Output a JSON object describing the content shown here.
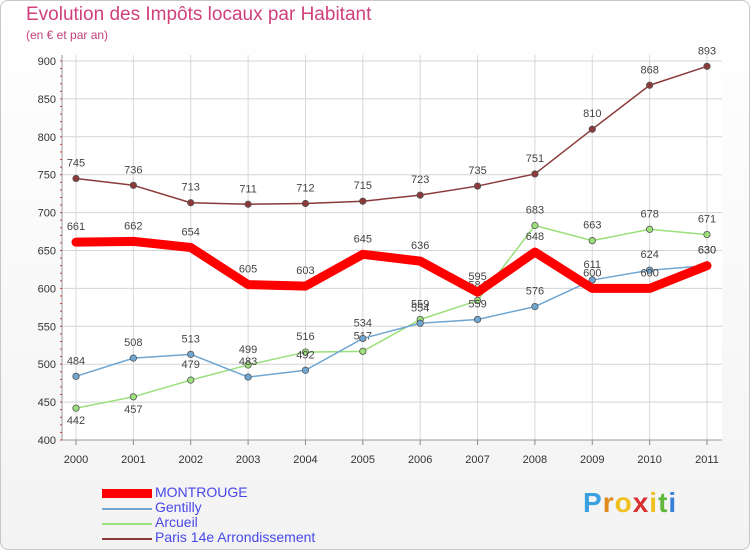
{
  "chart_data": {
    "type": "line",
    "title": "Evolution des Impôts locaux par Habitant",
    "subtitle": "(en € et par an)",
    "xlabel": "",
    "ylabel": "",
    "categories": [
      "2000",
      "2001",
      "2002",
      "2003",
      "2004",
      "2005",
      "2006",
      "2007",
      "2008",
      "2009",
      "2010",
      "2011"
    ],
    "ylim": [
      400,
      900
    ],
    "yticks": [
      "400",
      "450",
      "500",
      "550",
      "600",
      "650",
      "700",
      "750",
      "800",
      "850",
      "900"
    ],
    "grid": true,
    "series": [
      {
        "name": "Paris 14e  Arrondissement",
        "color": "#8b3a3a",
        "values": [
          745,
          736,
          713,
          711,
          712,
          715,
          723,
          735,
          751,
          810,
          868,
          893
        ]
      },
      {
        "name": "Arcueil",
        "color": "#9be07a",
        "values": [
          442,
          457,
          479,
          499,
          516,
          517,
          559,
          584,
          683,
          663,
          678,
          671
        ]
      },
      {
        "name": "Gentilly",
        "color": "#6fa6d2",
        "values": [
          484,
          508,
          513,
          483,
          492,
          534,
          554,
          559,
          576,
          611,
          624,
          630
        ]
      },
      {
        "name": "MONTROUGE",
        "color": "#ff0000",
        "values": [
          661,
          662,
          654,
          605,
          603,
          645,
          636,
          595,
          648,
          600,
          600,
          630
        ]
      }
    ],
    "legend_order": [
      "MONTROUGE",
      "Gentilly",
      "Arcueil",
      "Paris 14e  Arrondissement"
    ],
    "legend_position": "bottom-left"
  },
  "logo": {
    "letters": [
      "P",
      "r",
      "o",
      "x",
      "i",
      "t",
      "i"
    ],
    "colors": [
      "#3aa0e0",
      "#e08a1e",
      "#f0c020",
      "#d83030",
      "#f0c020",
      "#5fb83a",
      "#3a80d8"
    ]
  }
}
